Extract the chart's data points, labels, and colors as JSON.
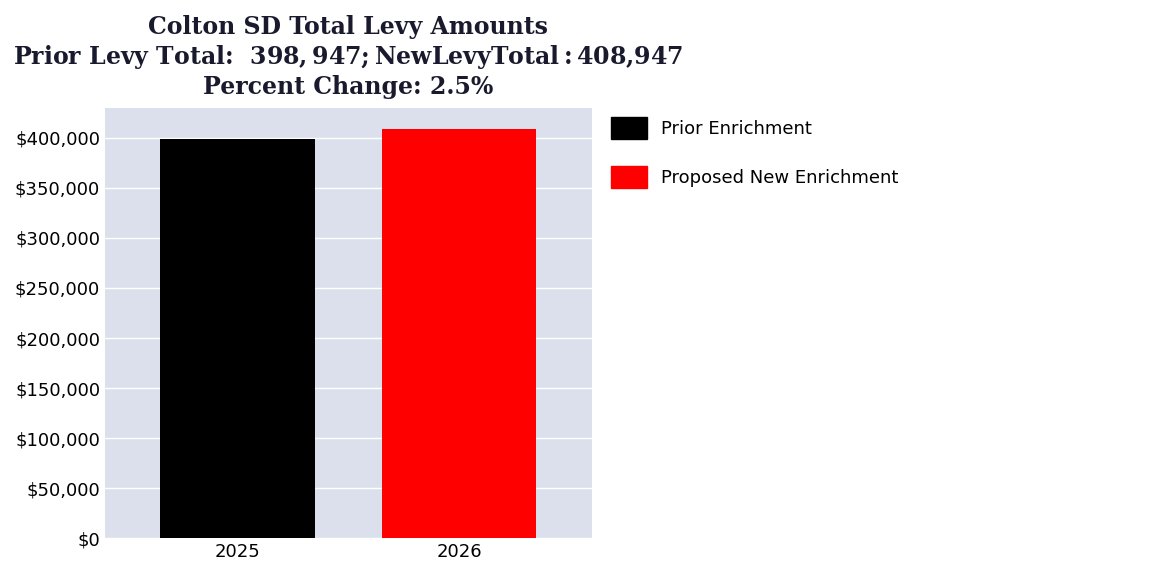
{
  "title_line1": "Colton SD Total Levy Amounts",
  "title_line2": "Prior Levy Total:  $398,947; New Levy Total: $408,947",
  "title_line3": "Percent Change: 2.5%",
  "categories": [
    "2025",
    "2026"
  ],
  "values": [
    398947,
    408947
  ],
  "bar_colors": [
    "#000000",
    "#ff0000"
  ],
  "legend_labels": [
    "Prior Enrichment",
    "Proposed New Enrichment"
  ],
  "legend_colors": [
    "#000000",
    "#ff0000"
  ],
  "ylim_max": 430000,
  "yticks": [
    0,
    50000,
    100000,
    150000,
    200000,
    250000,
    300000,
    350000,
    400000
  ],
  "background_color": "#dce0ec",
  "figure_background": "#ffffff",
  "title_fontsize": 17,
  "tick_fontsize": 13,
  "legend_fontsize": 13,
  "bar_width": 0.7
}
